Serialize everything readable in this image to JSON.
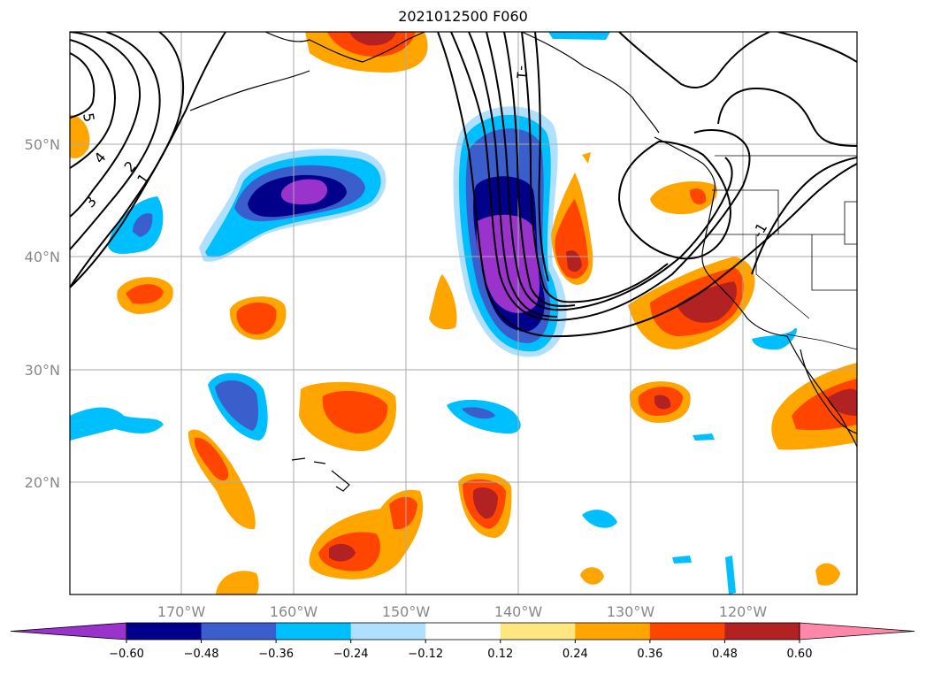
{
  "title": "2021012500 F060",
  "lat_labels": [
    "50°N",
    "40°N",
    "30°N",
    "20°N"
  ],
  "lon_labels": [
    "170°W",
    "160°W",
    "150°W",
    "140°W",
    "130°W",
    "120°W"
  ],
  "contour_labels": [
    "5",
    "4",
    "3",
    "2",
    "1",
    "-1",
    "-1"
  ],
  "colorbar": {
    "tick_labels": [
      "−0.60",
      "−0.48",
      "−0.36",
      "−0.24",
      "−0.12",
      "0.12",
      "0.24",
      "0.36",
      "0.48",
      "0.60"
    ],
    "colors": [
      "#9933cc",
      "#00008b",
      "#3a5fcd",
      "#00bfff",
      "#b0e0ff",
      "#ffffff",
      "#ffe680",
      "#ffa500",
      "#ff4500",
      "#b22222",
      "#ff88aa"
    ]
  }
}
